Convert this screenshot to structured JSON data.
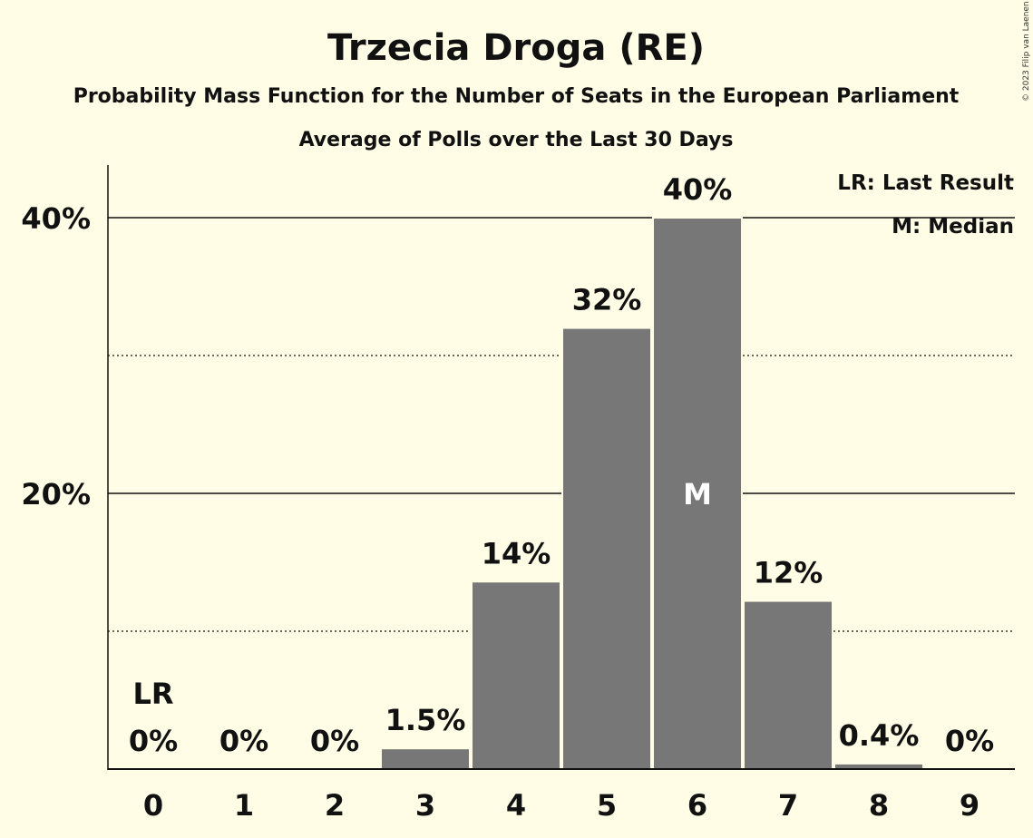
{
  "chart_data": {
    "type": "bar",
    "title": "Trzecia Droga (RE)",
    "subtitle": "Probability Mass Function for the Number of Seats in the European Parliament",
    "subtitle2": "Average of Polls over the Last 30 Days",
    "copyright": "© 2023 Filip van Laenen",
    "categories": [
      "0",
      "1",
      "2",
      "3",
      "4",
      "5",
      "6",
      "7",
      "8",
      "9"
    ],
    "values": [
      0,
      0,
      0,
      1.5,
      13.6,
      32,
      40,
      12.2,
      0.4,
      0
    ],
    "value_labels": [
      "0%",
      "0%",
      "0%",
      "1.5%",
      "14%",
      "32%",
      "40%",
      "12%",
      "0.4%",
      "0%"
    ],
    "ylim": [
      0,
      44
    ],
    "y_ticks": [
      {
        "value": 20,
        "label": "20%"
      },
      {
        "value": 40,
        "label": "40%"
      }
    ],
    "minor_gridlines": [
      10,
      30
    ],
    "bar_color": "#777777",
    "background_color": "#FFFDE6",
    "markers": [
      {
        "category": "0",
        "text": "LR",
        "position": "above"
      },
      {
        "category": "6",
        "text": "M",
        "position": "inside"
      }
    ],
    "legend": {
      "placement": "top-right",
      "entries": [
        "LR: Last Result",
        "M: Median"
      ]
    }
  }
}
